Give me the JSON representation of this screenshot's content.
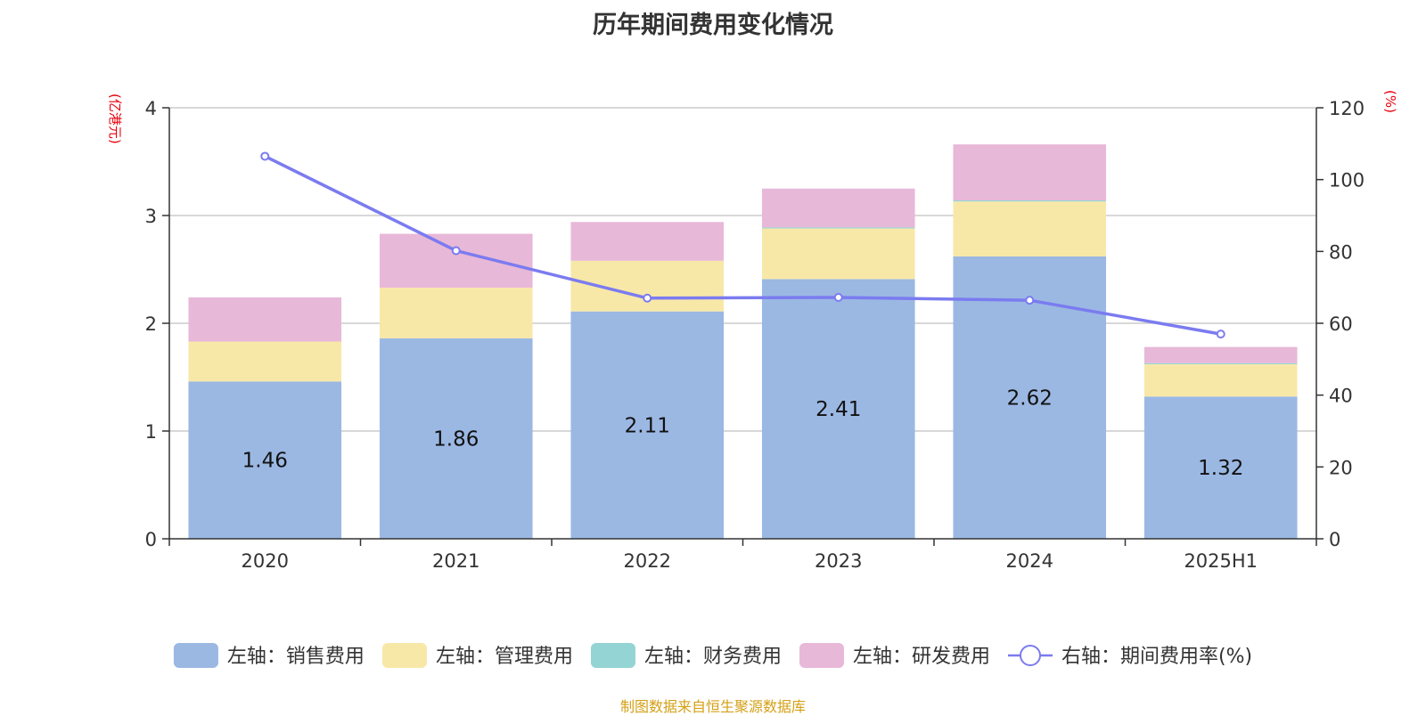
{
  "source_note": "制图数据来自恒生聚源数据库",
  "chart_data": {
    "type": "bar",
    "title": "历年期间费用变化情况",
    "categories": [
      "2020",
      "2021",
      "2022",
      "2023",
      "2024",
      "2025H1"
    ],
    "y_left": {
      "unit": "(亿港元)",
      "ylim": [
        0,
        4
      ],
      "ticks": [
        0,
        1,
        2,
        3,
        4
      ]
    },
    "y_right": {
      "unit": "(%)",
      "ylim": [
        0,
        120
      ],
      "ticks": [
        0,
        20,
        40,
        60,
        80,
        100,
        120
      ]
    },
    "series": [
      {
        "name": "左轴：销售费用",
        "type": "bar",
        "axis": "left",
        "color": "#9bb8e3",
        "values": [
          1.46,
          1.86,
          2.11,
          2.41,
          2.62,
          1.32
        ],
        "show_labels": true
      },
      {
        "name": "左轴：管理费用",
        "type": "bar",
        "axis": "left",
        "color": "#f8e8a8",
        "values": [
          0.37,
          0.47,
          0.47,
          0.47,
          0.51,
          0.3
        ],
        "show_labels": false
      },
      {
        "name": "左轴：财务费用",
        "type": "bar",
        "axis": "left",
        "color": "#94d4d4",
        "values": [
          0.0,
          0.0,
          0.0,
          0.01,
          0.01,
          0.01
        ],
        "show_labels": false
      },
      {
        "name": "左轴：研发费用",
        "type": "bar",
        "axis": "left",
        "color": "#e8b8d8",
        "values": [
          0.41,
          0.5,
          0.36,
          0.36,
          0.52,
          0.15
        ],
        "show_labels": false
      },
      {
        "name": "右轴：期间费用率(%)",
        "type": "line",
        "axis": "right",
        "color": "#7b7bf0",
        "values": [
          106.5,
          80.2,
          67.0,
          67.2,
          66.4,
          57.0
        ]
      }
    ],
    "legend_position": "bottom"
  }
}
